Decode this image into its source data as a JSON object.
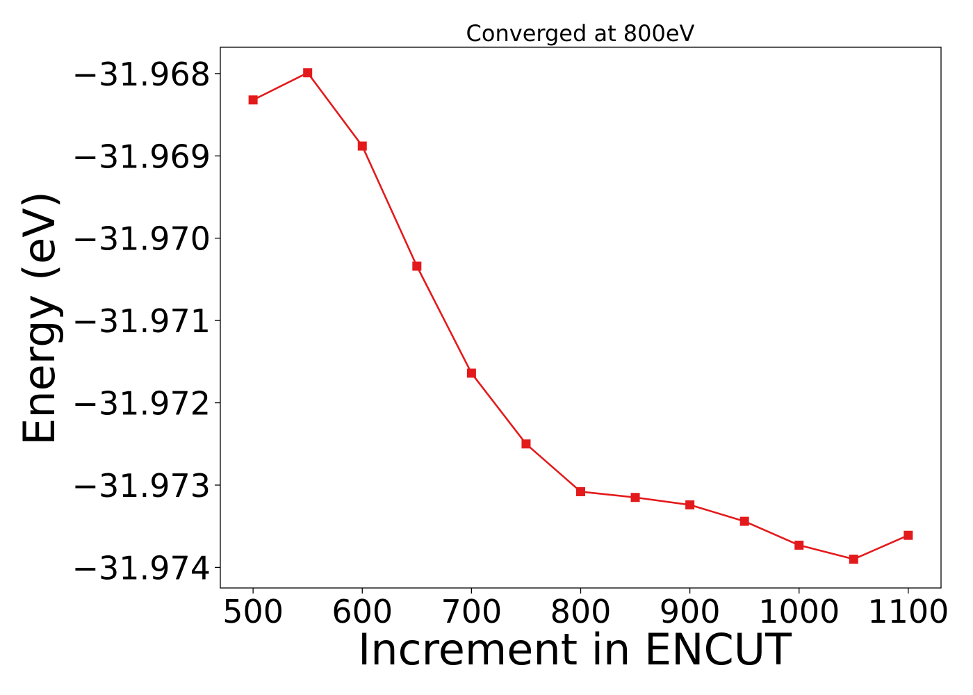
{
  "chart_data": {
    "type": "line",
    "title": "Converged at 800eV",
    "xlabel": "Increment in ENCUT",
    "ylabel": "Energy (eV)",
    "x": [
      500,
      550,
      600,
      650,
      700,
      750,
      800,
      850,
      900,
      950,
      1000,
      1050,
      1100
    ],
    "series": [
      {
        "values": [
          -31.96832,
          -31.96799,
          -31.96888,
          -31.97034,
          -31.97164,
          -31.9725,
          -31.97308,
          -31.97315,
          -31.97324,
          -31.97344,
          -31.97373,
          -31.9739,
          -31.97361
        ]
      }
    ],
    "xticks": [
      500,
      600,
      700,
      800,
      900,
      1000,
      1100
    ],
    "xtick_labels": [
      "500",
      "600",
      "700",
      "800",
      "900",
      "1000",
      "1100"
    ],
    "yticks": [
      -31.968,
      -31.969,
      -31.97,
      -31.971,
      -31.972,
      -31.973,
      -31.974
    ],
    "ytick_labels": [
      "−31.968",
      "−31.969",
      "−31.970",
      "−31.971",
      "−31.972",
      "−31.973",
      "−31.974"
    ],
    "xlim": [
      470,
      1130
    ],
    "ylim": [
      -31.97425,
      -31.96768
    ],
    "grid": false,
    "line_color": "#e31a1c",
    "marker": "square"
  }
}
